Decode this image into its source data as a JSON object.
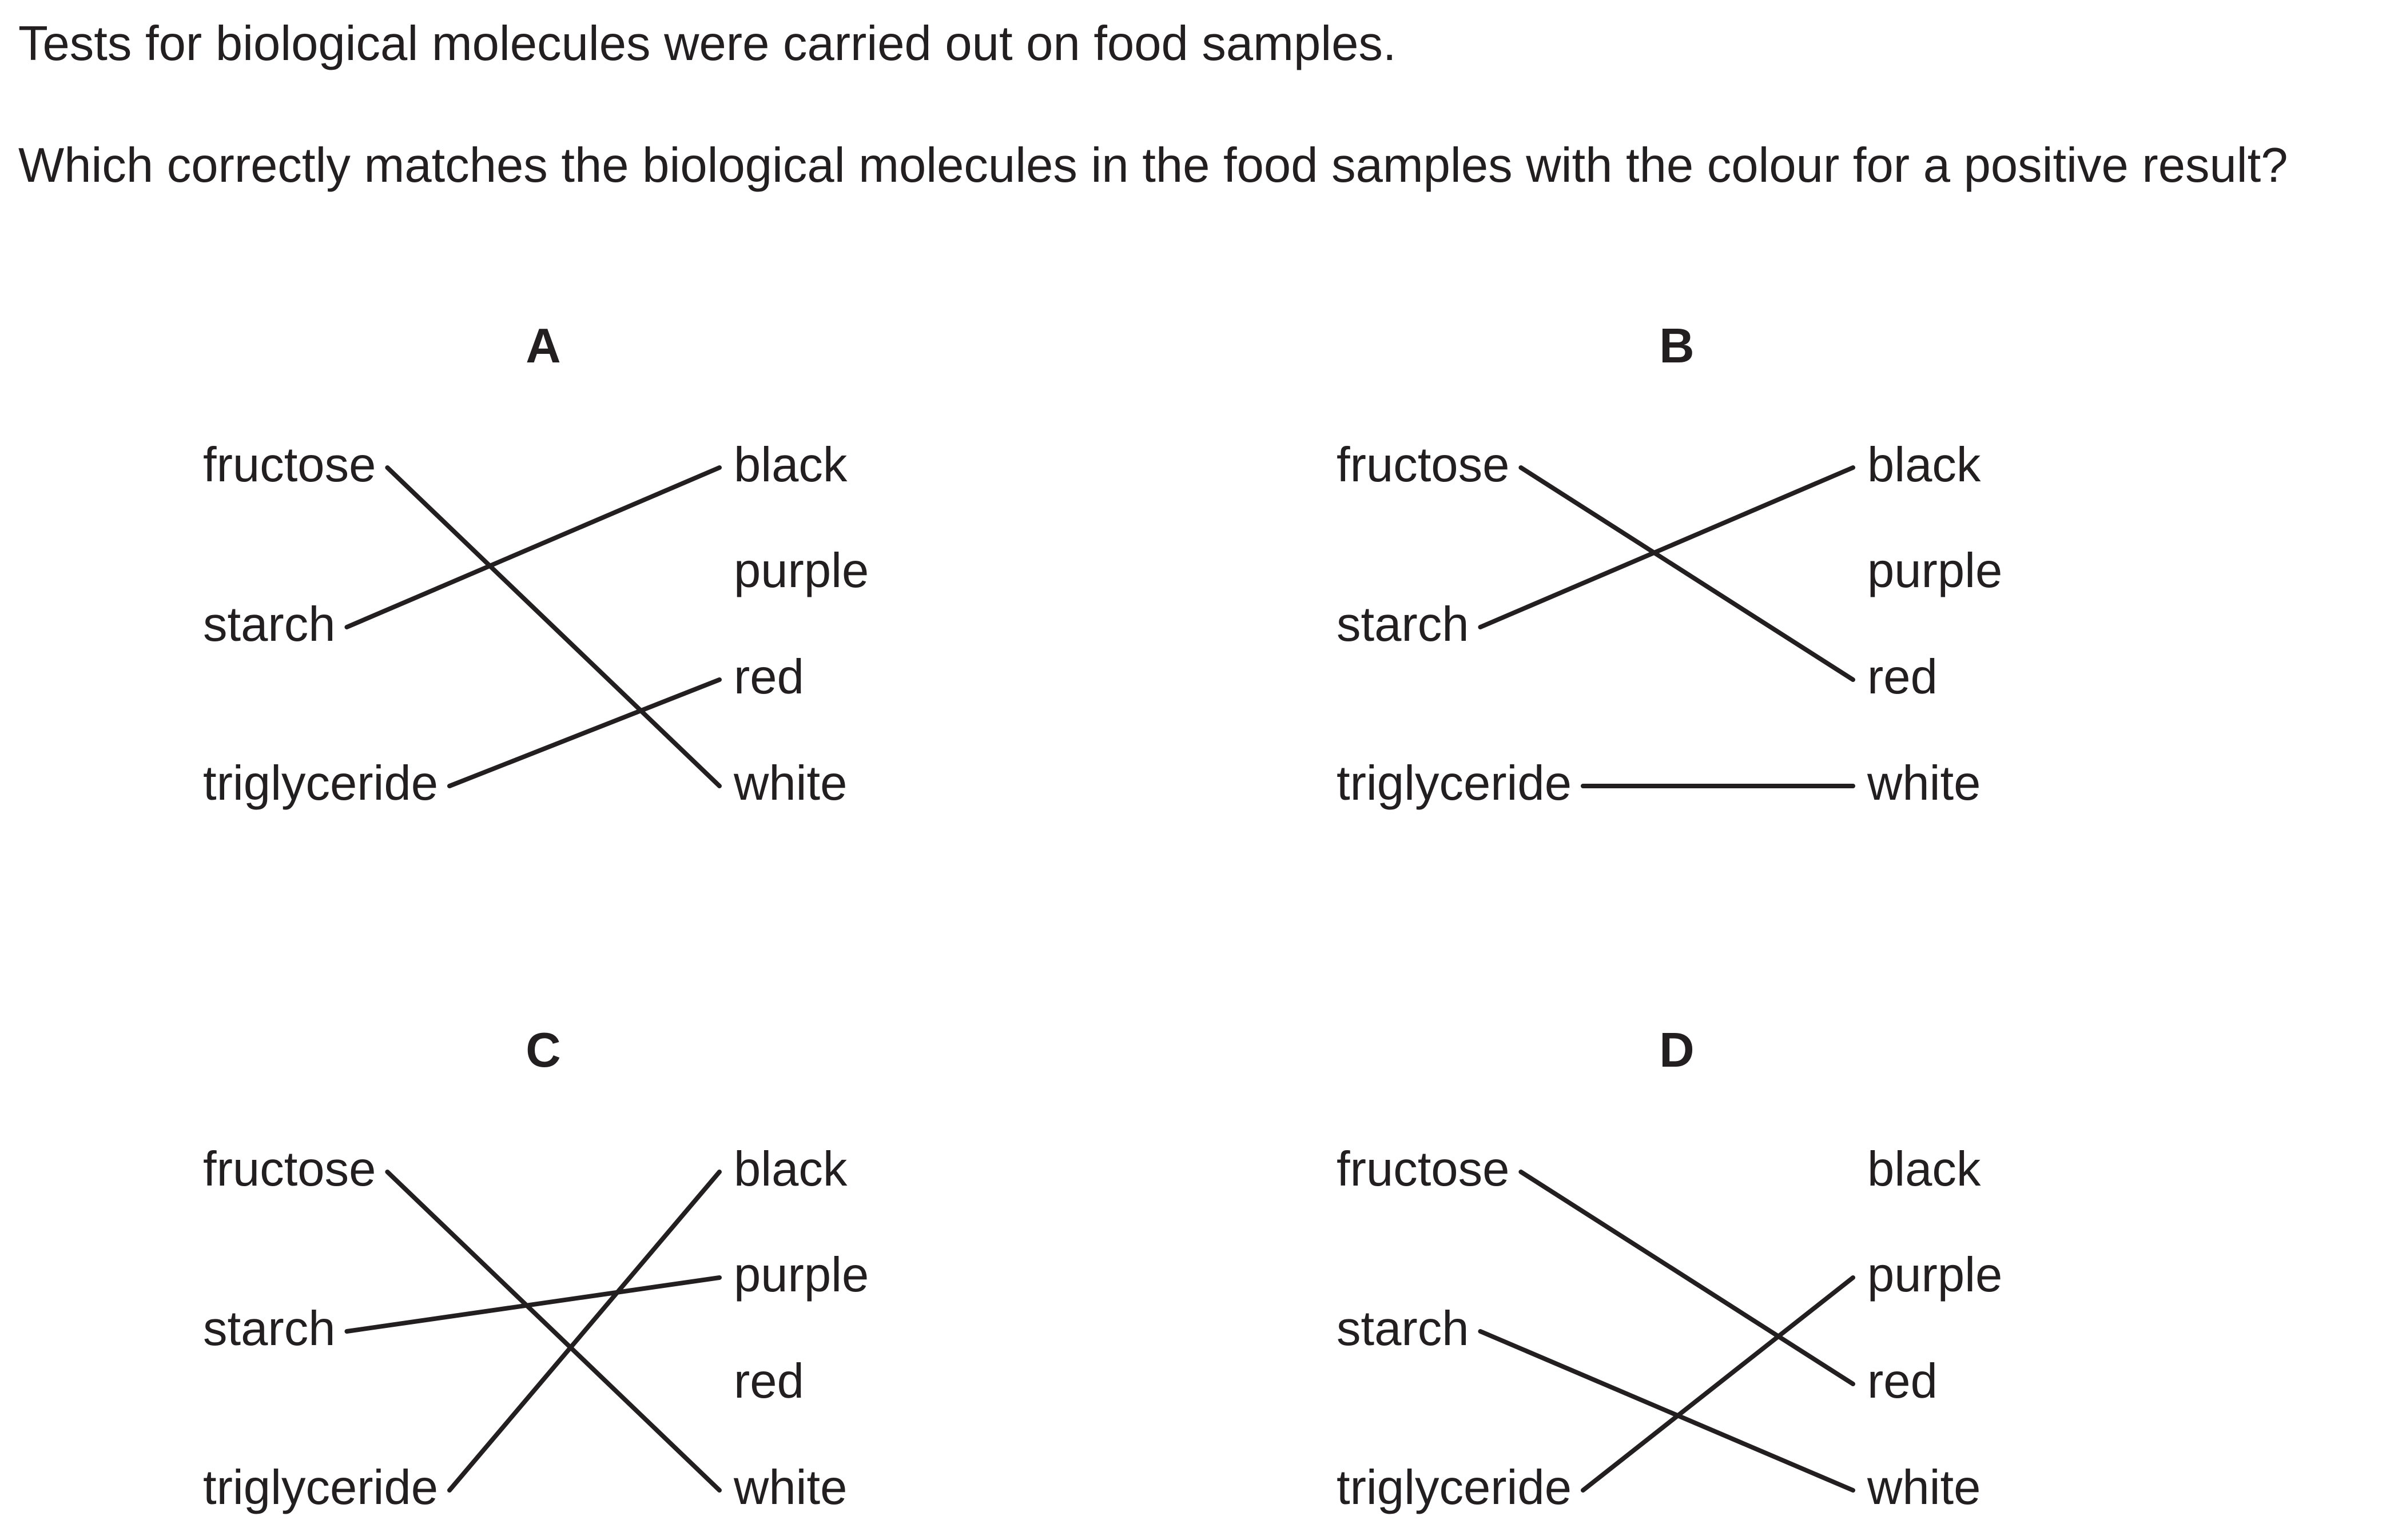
{
  "question": {
    "intro": "Tests for biological molecules were carried out on food samples.",
    "stem": "Which correctly matches the biological molecules in the food samples with the colour for a positive result?"
  },
  "molecules": [
    "fructose",
    "starch",
    "triglyceride"
  ],
  "colours": [
    "black",
    "purple",
    "red",
    "white"
  ],
  "options": [
    {
      "letter": "A",
      "matches": {
        "fructose": "white",
        "starch": "black",
        "triglyceride": "red"
      }
    },
    {
      "letter": "B",
      "matches": {
        "fructose": "red",
        "starch": "black",
        "triglyceride": "white"
      }
    },
    {
      "letter": "C",
      "matches": {
        "fructose": "white",
        "starch": "purple",
        "triglyceride": "black"
      }
    },
    {
      "letter": "D",
      "matches": {
        "fructose": "red",
        "starch": "white",
        "triglyceride": "purple"
      }
    }
  ]
}
